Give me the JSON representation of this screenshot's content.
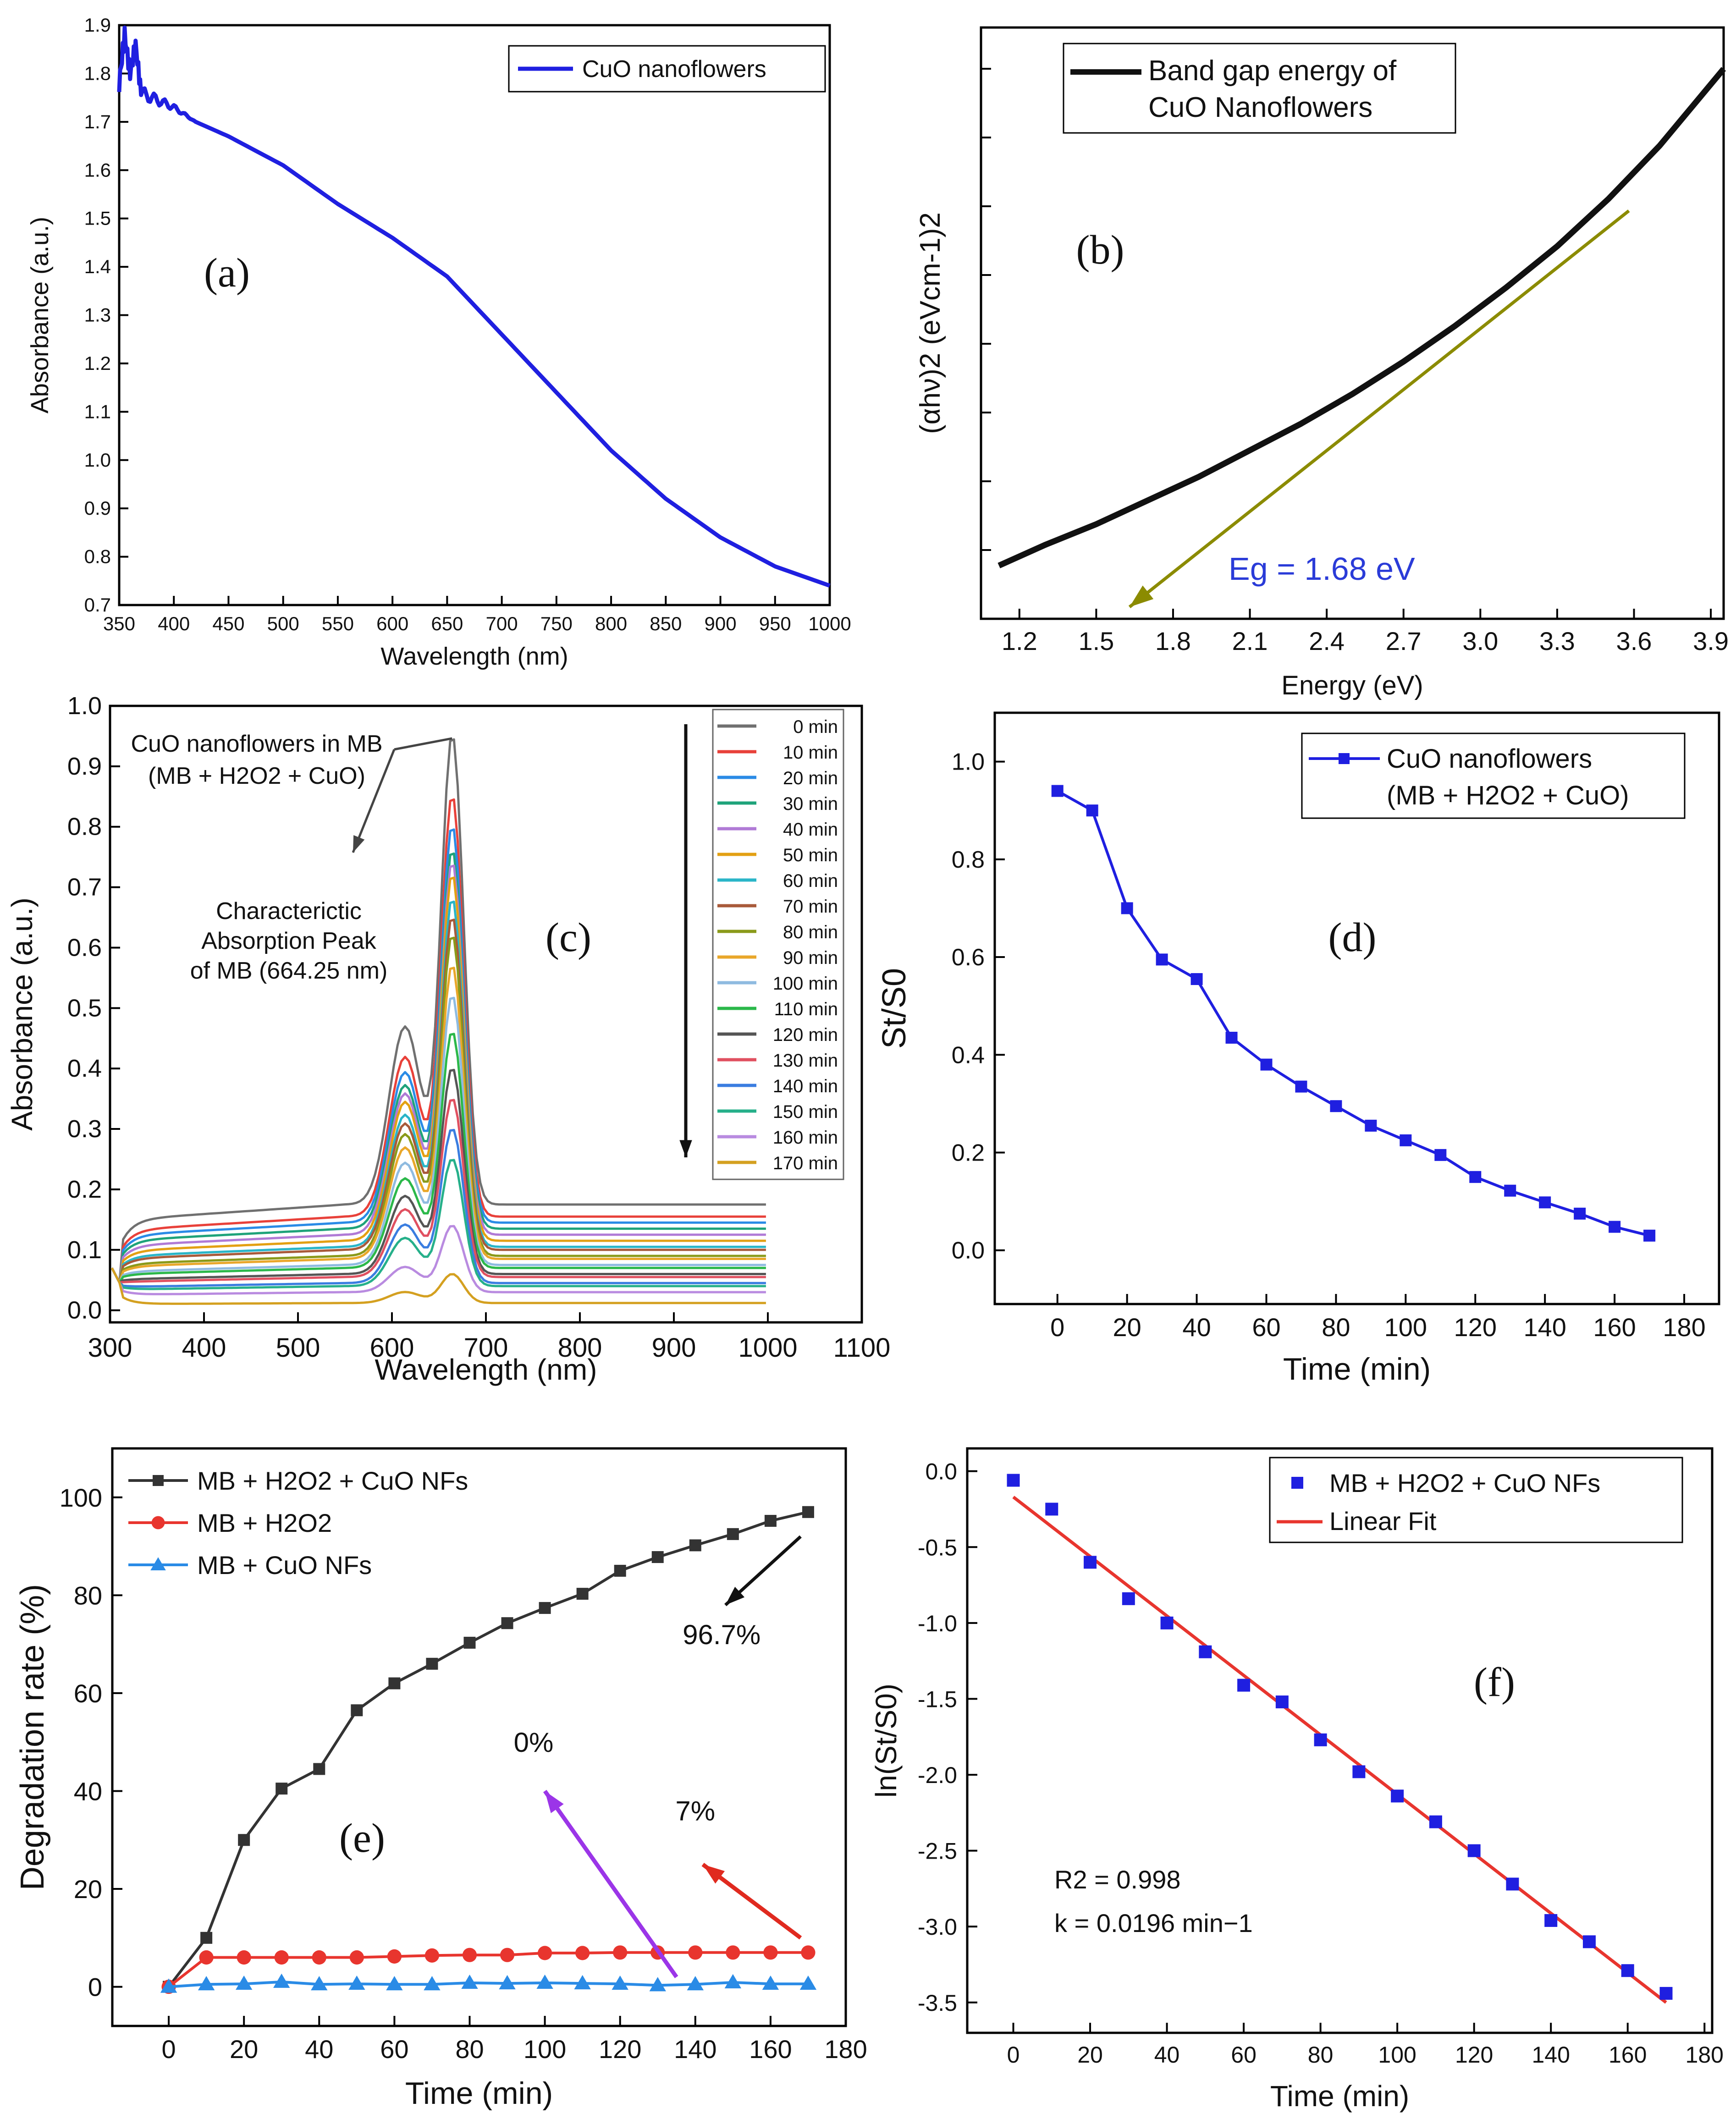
{
  "figure": {
    "panels": [
      "a",
      "b",
      "c",
      "d",
      "e",
      "f"
    ]
  },
  "chart_data": [
    {
      "id": "a",
      "type": "line",
      "panel_label": "(a)",
      "xlabel": "Wavelength (nm)",
      "ylabel": "Absorbance (a.u.)",
      "xlim": [
        350,
        1000
      ],
      "ylim": [
        0.7,
        1.9
      ],
      "xticks": [
        350,
        400,
        450,
        500,
        550,
        600,
        650,
        700,
        750,
        800,
        850,
        900,
        950,
        1000
      ],
      "yticks": [
        "0.7",
        "0.8",
        "0.9",
        "1.0",
        "1.1",
        "1.2",
        "1.3",
        "1.4",
        "1.5",
        "1.6",
        "1.7",
        "1.8",
        "1.9"
      ],
      "legend": {
        "position": "top-right",
        "entries": [
          "CuO nanoflowers"
        ]
      },
      "series": [
        {
          "name": "CuO nanoflowers",
          "color": "#1f1fe0",
          "x": [
            350,
            355,
            360,
            365,
            370,
            380,
            390,
            400,
            420,
            450,
            500,
            550,
            600,
            650,
            700,
            750,
            800,
            850,
            900,
            950,
            1000
          ],
          "y": [
            1.78,
            1.88,
            1.8,
            1.86,
            1.76,
            1.75,
            1.74,
            1.73,
            1.7,
            1.67,
            1.61,
            1.53,
            1.46,
            1.38,
            1.26,
            1.14,
            1.02,
            0.92,
            0.84,
            0.78,
            0.74
          ]
        }
      ]
    },
    {
      "id": "b",
      "type": "line",
      "panel_label": "(b)",
      "xlabel": "Energy (eV)",
      "ylabel": "(αhν)2 (eVcm-1)2",
      "xlim": [
        1.05,
        3.95
      ],
      "ylim": [
        0,
        100
      ],
      "xticks": [
        "1.2",
        "1.5",
        "1.8",
        "2.1",
        "2.4",
        "2.7",
        "3.0",
        "3.3",
        "3.6",
        "3.9"
      ],
      "legend": {
        "position": "top-left",
        "entries": [
          "Band gap energy of",
          "CuO Nanoflowers"
        ]
      },
      "annotation": "Eg = 1.68 eV",
      "series": [
        {
          "name": "Band gap energy of CuO Nanoflowers",
          "color": "#111111",
          "x": [
            1.12,
            1.3,
            1.5,
            1.7,
            1.9,
            2.1,
            2.3,
            2.5,
            2.7,
            2.9,
            3.1,
            3.3,
            3.5,
            3.7,
            3.95
          ],
          "y": [
            9,
            12.5,
            16,
            20,
            24,
            28.5,
            33,
            38,
            43.5,
            49.5,
            56,
            63,
            71,
            80,
            93
          ]
        },
        {
          "name": "Tangent",
          "color": "#8b8b00",
          "x": [
            3.58,
            1.63
          ],
          "y": [
            69,
            2
          ]
        }
      ]
    },
    {
      "id": "c",
      "type": "line",
      "panel_label": "(c)",
      "xlabel": "Wavelength (nm)",
      "ylabel": "Absorbance (a.u.)",
      "xlim": [
        300,
        1100
      ],
      "ylim": [
        -0.02,
        1.0
      ],
      "xticks": [
        "300",
        "400",
        "500",
        "600",
        "700",
        "800",
        "900",
        "1000",
        "1100"
      ],
      "yticks": [
        "0.0",
        "0.1",
        "0.2",
        "0.3",
        "0.4",
        "0.5",
        "0.6",
        "0.7",
        "0.8",
        "0.9",
        "1.0"
      ],
      "annotation_top": [
        "CuO nanoflowers in MB",
        "(MB + H2O2 + CuO)"
      ],
      "annotation_peak": [
        "Characterictic",
        "Absorption Peak",
        "of MB (664.25 nm)"
      ],
      "legend": {
        "position": "right",
        "entries": [
          "0 min",
          "10 min",
          "20 min",
          "30 min",
          "40 min",
          "50 min",
          "60 min",
          "70 min",
          "80 min",
          "90 min",
          "100 min",
          "110 min",
          "120 min",
          "130 min",
          "140 min",
          "150 min",
          "160 min",
          "170 min"
        ]
      },
      "colors": [
        "#707070",
        "#e8413a",
        "#2a8be6",
        "#1fa37a",
        "#b07ad6",
        "#e3a013",
        "#2ab5c8",
        "#a85a3a",
        "#8a9a1a",
        "#e9a72a",
        "#8fbbe0",
        "#2bb84a",
        "#555555",
        "#e05060",
        "#3a7de0",
        "#26b08a",
        "#b98be0",
        "#d4a020"
      ],
      "peak_wavelength_nm": 664.25,
      "peak_heights": [
        0.95,
        0.85,
        0.8,
        0.76,
        0.74,
        0.72,
        0.68,
        0.65,
        0.62,
        0.57,
        0.52,
        0.46,
        0.4,
        0.35,
        0.3,
        0.25,
        0.14,
        0.06
      ],
      "baseline_levels": [
        0.175,
        0.155,
        0.145,
        0.135,
        0.125,
        0.115,
        0.105,
        0.1,
        0.09,
        0.085,
        0.075,
        0.07,
        0.06,
        0.055,
        0.045,
        0.04,
        0.03,
        0.012
      ]
    },
    {
      "id": "d",
      "type": "line",
      "panel_label": "(d)",
      "xlabel": "Time (min)",
      "ylabel": "St/S0",
      "xlim": [
        -18,
        190
      ],
      "ylim": [
        -0.11,
        1.1
      ],
      "xticks": [
        "0",
        "20",
        "40",
        "60",
        "80",
        "100",
        "120",
        "140",
        "160",
        "180"
      ],
      "yticks": [
        "0.0",
        "0.2",
        "0.4",
        "0.6",
        "0.8",
        "1.0"
      ],
      "legend": {
        "position": "top-right",
        "entries": [
          "CuO nanoflowers",
          "(MB + H2O2 + CuO)"
        ]
      },
      "series": [
        {
          "name": "CuO nanoflowers (MB + H2O2 + CuO)",
          "color": "#1f1fe0",
          "x": [
            0,
            10,
            20,
            30,
            40,
            50,
            60,
            70,
            80,
            90,
            100,
            110,
            120,
            130,
            140,
            150,
            160,
            170
          ],
          "y": [
            0.94,
            0.9,
            0.7,
            0.595,
            0.555,
            0.435,
            0.38,
            0.335,
            0.295,
            0.255,
            0.225,
            0.195,
            0.15,
            0.122,
            0.098,
            0.075,
            0.048,
            0.03
          ]
        }
      ]
    },
    {
      "id": "e",
      "type": "line",
      "panel_label": "(e)",
      "xlabel": "Time (min)",
      "ylabel": "Degradation rate (%)",
      "xlim": [
        -15,
        180
      ],
      "ylim": [
        -8,
        110
      ],
      "xticks": [
        "0",
        "20",
        "40",
        "60",
        "80",
        "100",
        "120",
        "140",
        "160",
        "180"
      ],
      "yticks": [
        "0",
        "20",
        "40",
        "60",
        "80",
        "100"
      ],
      "legend": {
        "position": "top-left",
        "entries": [
          "MB + H2O2 + CuO NFs",
          "MB + H2O2",
          "MB + CuO NFs"
        ]
      },
      "annotations": [
        "96.7%",
        "0%",
        "7%"
      ],
      "series": [
        {
          "name": "MB + H2O2 + CuO NFs",
          "color": "#333333",
          "marker": "square",
          "x": [
            0,
            10,
            20,
            30,
            40,
            50,
            60,
            70,
            80,
            90,
            100,
            110,
            120,
            130,
            140,
            150,
            160,
            170
          ],
          "y": [
            0,
            10,
            30,
            40.5,
            44.5,
            56.5,
            62,
            66,
            70.3,
            74.3,
            77.4,
            80.3,
            85,
            87.8,
            90.2,
            92.5,
            95.2,
            97
          ]
        },
        {
          "name": "MB + H2O2",
          "color": "#e8352e",
          "marker": "circle",
          "x": [
            0,
            10,
            20,
            30,
            40,
            50,
            60,
            70,
            80,
            90,
            100,
            110,
            120,
            130,
            140,
            150,
            160,
            170
          ],
          "y": [
            0,
            6,
            6,
            6,
            6,
            6,
            6.2,
            6.4,
            6.5,
            6.5,
            6.9,
            6.9,
            7,
            7,
            7,
            7,
            7,
            7
          ]
        },
        {
          "name": "MB + CuO NFs",
          "color": "#2a8be6",
          "marker": "triangle",
          "x": [
            0,
            10,
            20,
            30,
            40,
            50,
            60,
            70,
            80,
            90,
            100,
            110,
            120,
            130,
            140,
            150,
            160,
            170
          ],
          "y": [
            0,
            0.5,
            0.6,
            1,
            0.5,
            0.6,
            0.5,
            0.5,
            0.8,
            0.7,
            0.8,
            0.7,
            0.6,
            0.3,
            0.5,
            0.9,
            0.6,
            0.6
          ]
        }
      ]
    },
    {
      "id": "f",
      "type": "scatter",
      "panel_label": "(f)",
      "xlabel": "Time (min)",
      "ylabel": "ln(St/S0)",
      "xlim": [
        -12,
        182
      ],
      "ylim": [
        -3.7,
        0.15
      ],
      "xticks": [
        "0",
        "20",
        "40",
        "60",
        "80",
        "100",
        "120",
        "140",
        "160",
        "180"
      ],
      "yticks": [
        "0.0",
        "-0.5",
        "-1.0",
        "-1.5",
        "-2.0",
        "-2.5",
        "-3.0",
        "-3.5"
      ],
      "legend": {
        "position": "top-right",
        "entries": [
          "MB + H2O2 + CuO NFs",
          "Linear Fit"
        ]
      },
      "stats": [
        "R2 = 0.998",
        "k = 0.0196 min−1"
      ],
      "series": [
        {
          "name": "MB + H2O2 + CuO NFs",
          "color": "#1f1fe0",
          "x": [
            0,
            10,
            20,
            30,
            40,
            50,
            60,
            70,
            80,
            90,
            100,
            110,
            120,
            130,
            140,
            150,
            160,
            170
          ],
          "y": [
            -0.06,
            -0.25,
            -0.6,
            -0.84,
            -1.0,
            -1.19,
            -1.41,
            -1.52,
            -1.77,
            -1.98,
            -2.14,
            -2.31,
            -2.5,
            -2.72,
            -2.96,
            -3.1,
            -3.29,
            -3.44
          ]
        },
        {
          "name": "Linear Fit",
          "color": "#e8352e",
          "x": [
            0,
            170
          ],
          "y": [
            -0.17,
            -3.5
          ]
        }
      ]
    }
  ]
}
